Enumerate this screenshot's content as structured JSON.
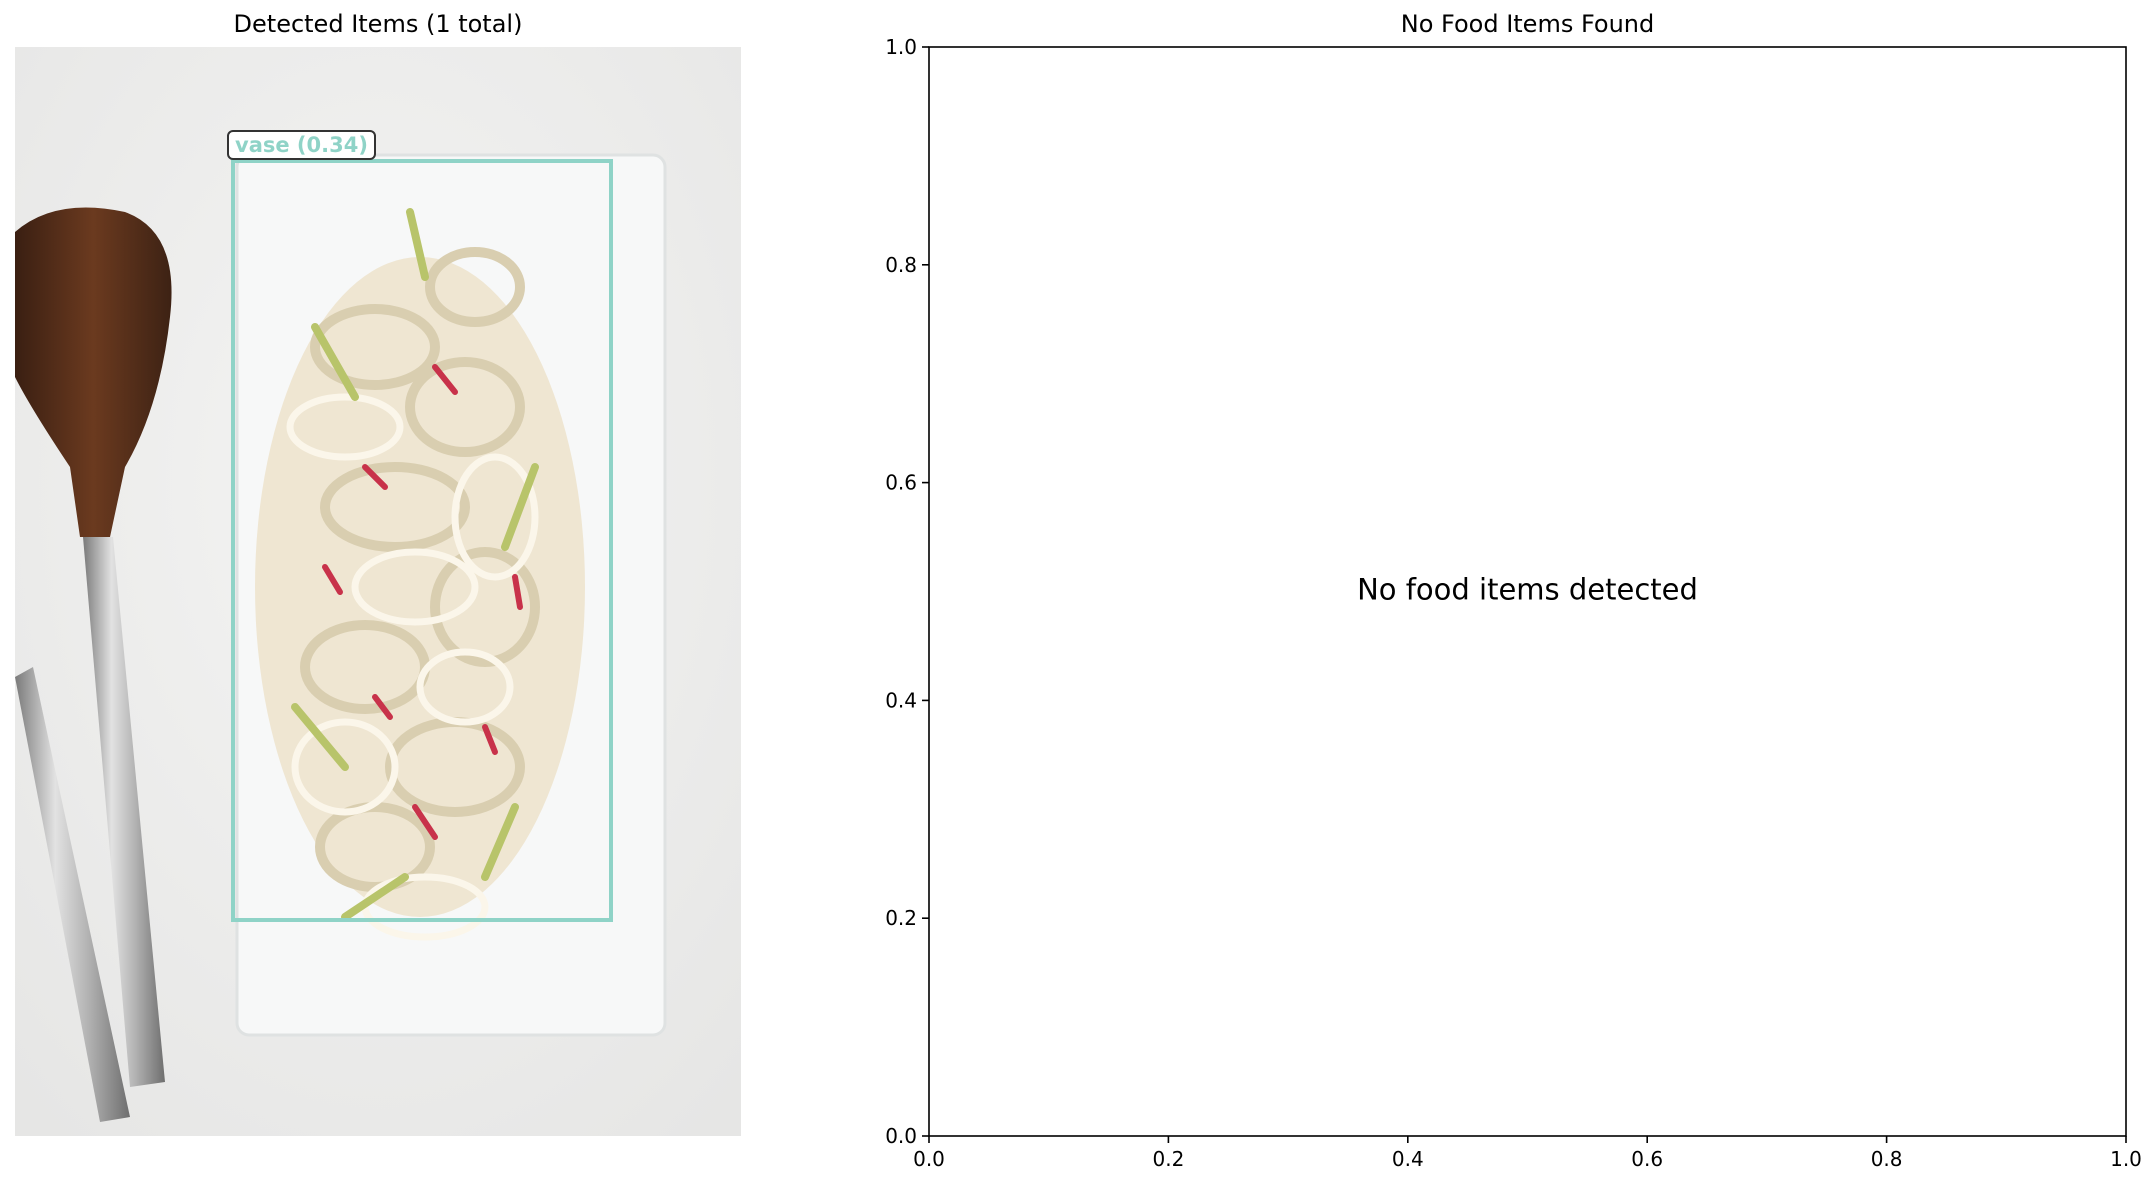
{
  "left_panel": {
    "title": "Detected Items (1 total)",
    "detection": {
      "label": "vase (0.34)",
      "box_color": "#8fd3c7"
    }
  },
  "chart_data": {
    "type": "scatter",
    "title": "No Food Items Found",
    "xlabel": "",
    "ylabel": "",
    "xlim": [
      0.0,
      1.0
    ],
    "ylim": [
      0.0,
      1.0
    ],
    "x_ticks": [
      "0.0",
      "0.2",
      "0.4",
      "0.6",
      "0.8",
      "1.0"
    ],
    "y_ticks": [
      "0.0",
      "0.2",
      "0.4",
      "0.6",
      "0.8",
      "1.0"
    ],
    "series": [],
    "annotation": "No food items detected",
    "grid": false
  }
}
